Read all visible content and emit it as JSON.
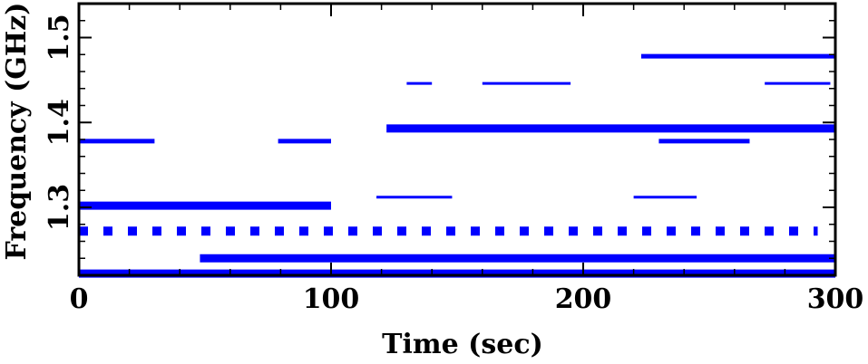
{
  "chart_data": {
    "type": "line",
    "title": "",
    "xlabel": "Time (sec)",
    "ylabel": "Frequency (GHz)",
    "xlim": [
      0,
      300
    ],
    "ylim": [
      1.22,
      1.54
    ],
    "xticks": [
      0,
      100,
      200,
      300
    ],
    "xtick_labels": [
      "0",
      "100",
      "200",
      "300"
    ],
    "yticks": [
      1.3,
      1.4,
      1.5
    ],
    "ytick_labels": [
      "1.3",
      "1.4",
      "1.5"
    ],
    "grid": false,
    "legend": "none",
    "line_color": "#0000ff",
    "segments": [
      {
        "y": 1.478,
        "x_start": 223,
        "x_end": 300,
        "style": "medium"
      },
      {
        "y": 1.446,
        "x_start": 130,
        "x_end": 140,
        "style": "thin"
      },
      {
        "y": 1.446,
        "x_start": 160,
        "x_end": 195,
        "style": "thin"
      },
      {
        "y": 1.446,
        "x_start": 272,
        "x_end": 298,
        "style": "thin"
      },
      {
        "y": 1.393,
        "x_start": 122,
        "x_end": 300,
        "style": "thick"
      },
      {
        "y": 1.378,
        "x_start": 0,
        "x_end": 30,
        "style": "medium"
      },
      {
        "y": 1.378,
        "x_start": 79,
        "x_end": 100,
        "style": "medium"
      },
      {
        "y": 1.378,
        "x_start": 230,
        "x_end": 266,
        "style": "medium"
      },
      {
        "y": 1.312,
        "x_start": 118,
        "x_end": 148,
        "style": "thin"
      },
      {
        "y": 1.312,
        "x_start": 220,
        "x_end": 245,
        "style": "thin"
      },
      {
        "y": 1.302,
        "x_start": 0,
        "x_end": 100,
        "style": "thick"
      },
      {
        "y": 1.272,
        "x_start": 0,
        "x_end": 293,
        "style": "dotted"
      },
      {
        "y": 1.24,
        "x_start": 48,
        "x_end": 300,
        "style": "thick"
      },
      {
        "y": 1.222,
        "x_start": 0,
        "x_end": 300,
        "style": "thick"
      }
    ]
  }
}
